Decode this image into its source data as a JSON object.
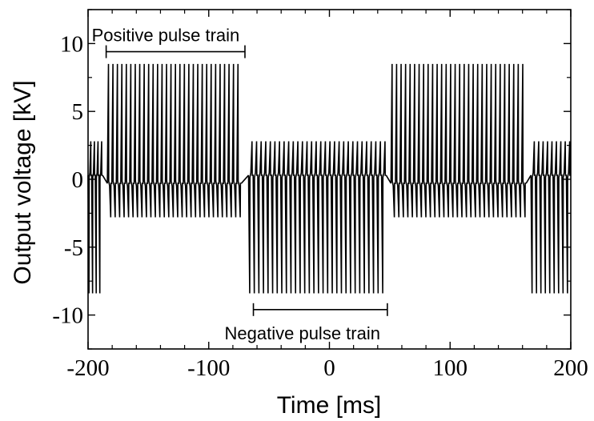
{
  "chart_data": {
    "type": "line",
    "xlabel": "Time [ms]",
    "ylabel": "Output voltage [kV]",
    "xlim": [
      -200,
      200
    ],
    "ylim": [
      -12.5,
      12.5
    ],
    "x_ticks": [
      -200,
      -100,
      0,
      100,
      200
    ],
    "x_tick_labels": [
      "-200",
      "-100",
      "0",
      "100",
      "200"
    ],
    "y_ticks": [
      10,
      5,
      0,
      -5,
      -10
    ],
    "y_tick_labels": [
      "10",
      "5",
      "0",
      "-5",
      "-10"
    ],
    "grid": false,
    "line_color": "#000000",
    "segments": [
      {
        "start": -200,
        "end": -188,
        "polarity": "negative",
        "peak_kV": -8.4,
        "opposite_kV": 2.8,
        "pulse_count": 4
      },
      {
        "start": -184,
        "end": -73,
        "polarity": "positive",
        "peak_kV": 8.5,
        "opposite_kV": -2.8,
        "pulse_count": 30
      },
      {
        "start": -67,
        "end": 47,
        "polarity": "negative",
        "peak_kV": -8.4,
        "opposite_kV": 2.8,
        "pulse_count": 30
      },
      {
        "start": 51,
        "end": 163,
        "polarity": "positive",
        "peak_kV": 8.5,
        "opposite_kV": -2.8,
        "pulse_count": 30
      },
      {
        "start": 167,
        "end": 200,
        "polarity": "negative",
        "peak_kV": -8.4,
        "opposite_kV": 2.8,
        "pulse_count": 9
      }
    ],
    "annotations": [
      {
        "text": "Positive pulse train",
        "x_start": -185,
        "x_end": -70,
        "y_bracket": 9.4,
        "label_position": "above"
      },
      {
        "text": "Negative pulse train",
        "x_start": -63,
        "x_end": 48,
        "y_bracket": -9.6,
        "label_position": "below"
      }
    ]
  }
}
